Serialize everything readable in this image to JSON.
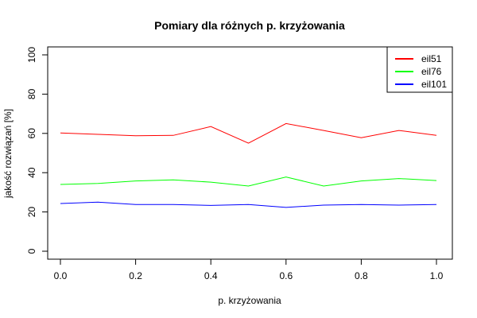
{
  "chart_data": {
    "type": "line",
    "title": "Pomiary dla różnych p. krzyżowania",
    "xlabel": "p. krzyżowania",
    "ylabel": "jakość rozwiązań [%]",
    "xlim": [
      0.0,
      1.0
    ],
    "ylim": [
      0,
      100
    ],
    "x": [
      0.0,
      0.1,
      0.2,
      0.3,
      0.4,
      0.5,
      0.6,
      0.7,
      0.8,
      0.9,
      1.0
    ],
    "x_ticks": [
      "0.0",
      "0.2",
      "0.4",
      "0.6",
      "0.8",
      "1.0"
    ],
    "y_ticks": [
      "0",
      "20",
      "40",
      "60",
      "80",
      "100"
    ],
    "grid": false,
    "legend_position": "top-right",
    "series": [
      {
        "name": "eil51",
        "color": "#ff0000",
        "values": [
          60.2,
          59.5,
          58.8,
          59.0,
          63.5,
          55.0,
          65.0,
          61.5,
          57.8,
          61.5,
          59.0
        ]
      },
      {
        "name": "eil76",
        "color": "#00ff00",
        "values": [
          34.0,
          34.5,
          35.8,
          36.3,
          35.2,
          33.2,
          37.8,
          33.2,
          35.8,
          37.0,
          36.0
        ]
      },
      {
        "name": "eil101",
        "color": "#0000ff",
        "values": [
          24.3,
          25.0,
          23.8,
          23.8,
          23.3,
          23.8,
          22.3,
          23.5,
          23.8,
          23.5,
          23.8
        ]
      }
    ]
  }
}
